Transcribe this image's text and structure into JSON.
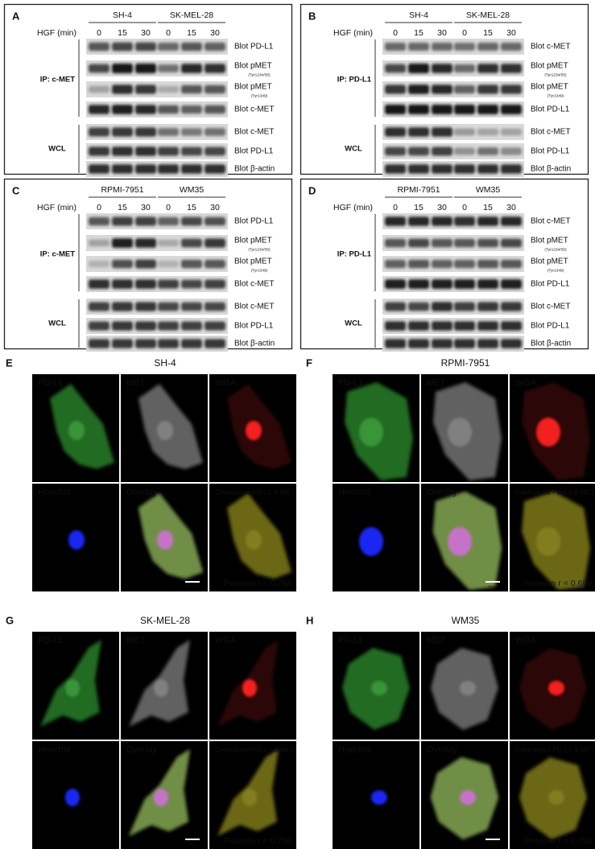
{
  "blot_panels": [
    {
      "letter": "A",
      "hgf_label": "HGF (min)",
      "groups": [
        {
          "name": "SH-4",
          "timepoints": [
            0,
            15,
            30
          ]
        },
        {
          "name": "SK-MEL-28",
          "timepoints": [
            0,
            15,
            30
          ]
        }
      ],
      "ip_label": "IP: c-MET",
      "wcl_label": "WCL",
      "rows": [
        {
          "label": "Blot  PD-L1"
        },
        {
          "label": "Blot  pMET",
          "note": "(Tyr1234/35)"
        },
        {
          "label": "Blot  pMET",
          "note": "(Tyr1349)"
        },
        {
          "label": "Blot  c-MET"
        },
        {
          "label": "Blot  c-MET"
        },
        {
          "label": "Blot  PD-L1"
        },
        {
          "label": "Blot  β-actin"
        }
      ]
    },
    {
      "letter": "B",
      "hgf_label": "HGF (min)",
      "groups": [
        {
          "name": "SH-4",
          "timepoints": [
            0,
            15,
            30
          ]
        },
        {
          "name": "SK-MEL-28",
          "timepoints": [
            0,
            15,
            30
          ]
        }
      ],
      "ip_label": "IP: PD-L1",
      "wcl_label": "WCL",
      "rows": [
        {
          "label": "Blot  c-MET"
        },
        {
          "label": "Blot  pMET",
          "note": "(Tyr1234/35)"
        },
        {
          "label": "Blot  pMET",
          "note": "(Tyr1349)"
        },
        {
          "label": "Blot  PD-L1"
        },
        {
          "label": "Blot  c-MET"
        },
        {
          "label": "Blot  PD-L1"
        },
        {
          "label": "Blot β-actin"
        }
      ]
    },
    {
      "letter": "C",
      "hgf_label": "HGF (min)",
      "groups": [
        {
          "name": "RPMI-7951",
          "timepoints": [
            0,
            15,
            30
          ]
        },
        {
          "name": "WM35",
          "timepoints": [
            0,
            15,
            30
          ]
        }
      ],
      "ip_label": "IP: c-MET",
      "wcl_label": "WCL",
      "rows": [
        {
          "label": "Blot  PD-L1"
        },
        {
          "label": "Blot  pMET",
          "note": "(Tyr1234/35)"
        },
        {
          "label": "Blot  pMET",
          "note": "(Tyr1349)"
        },
        {
          "label": "Blot  c-MET"
        },
        {
          "label": "Blot  c-MET"
        },
        {
          "label": "Blot  PD-L1"
        },
        {
          "label": "Blot β-actin"
        }
      ]
    },
    {
      "letter": "D",
      "hgf_label": "HGF (min)",
      "groups": [
        {
          "name": "RPMI-7951",
          "timepoints": [
            0,
            15,
            30
          ]
        },
        {
          "name": "WM35",
          "timepoints": [
            0,
            15,
            30
          ]
        }
      ],
      "ip_label": "IP: PD-L1",
      "wcl_label": "WCL",
      "rows": [
        {
          "label": "Blot  c-MET"
        },
        {
          "label": "Blot  pMET",
          "note": "(Tyr1234/35)"
        },
        {
          "label": "Blot  pMET",
          "note": "(Tyr1349)"
        },
        {
          "label": "Blot  PD-L1"
        },
        {
          "label": "Blot  c-MET"
        },
        {
          "label": "Blot  PD-L1"
        },
        {
          "label": "Blot β-actin"
        }
      ]
    }
  ],
  "image_panels": [
    {
      "letter": "E",
      "title": "SH-4",
      "channels": [
        "PD-L1",
        "MET",
        "WGA",
        "Hoechst",
        "Overlay",
        "Colocalized PD-L1 & MET"
      ],
      "scale_bar": "10 µm",
      "pearson": "Pearson r = 0.768"
    },
    {
      "letter": "F",
      "title": "RPMI-7951",
      "channels": [
        "PD-L1",
        "MET",
        "WGA",
        "Hoechst",
        "Overlay",
        "Colocalized PD-L1 & MET"
      ],
      "scale_bar": "10 µm",
      "pearson": "Pearson r = 0.699"
    },
    {
      "letter": "G",
      "title": "SK-MEL-28",
      "channels": [
        "PD-L1",
        "MET",
        "WGA",
        "Hoechst",
        "Overlay",
        "Colocalized PD-L1 & MET"
      ],
      "scale_bar": "10 µm",
      "pearson": "Pearson r = 0.750"
    },
    {
      "letter": "H",
      "title": "WM35",
      "channels": [
        "PD-L1",
        "MET",
        "WGA",
        "Hoechst",
        "Overlay",
        "Colocalized PD-L1 & MET"
      ],
      "scale_bar": "10 µm",
      "pearson": "Pearson r = 0.754"
    }
  ]
}
